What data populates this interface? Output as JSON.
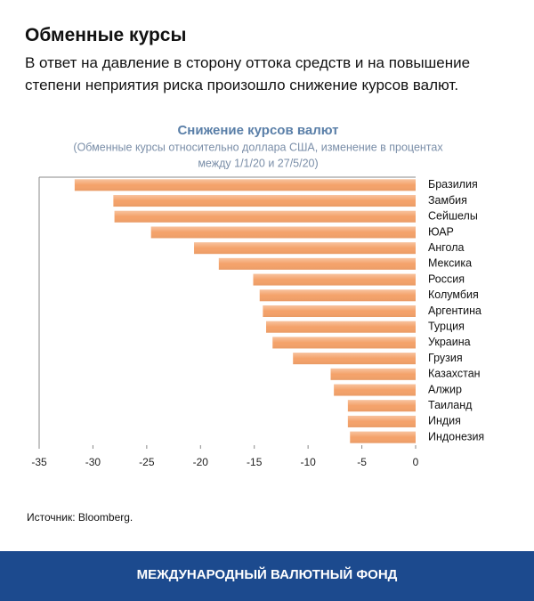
{
  "header": {
    "title": "Обменные курсы",
    "subtitle": "В ответ на давление в сторону оттока средств и на повышение степени неприятия риска произошло снижение курсов валют."
  },
  "chart_data": {
    "type": "bar",
    "orientation": "horizontal",
    "title": "Снижение курсов валют",
    "subtitle": [
      "(Обменные курсы относительно доллара США, изменение в процентах",
      "между 1/1/20 и 27/5/20)"
    ],
    "categories": [
      "Бразилия",
      "Замбия",
      "Сейшелы",
      "ЮАР",
      "Ангола",
      "Мексика",
      "Россия",
      "Колумбия",
      "Аргентина",
      "Турция",
      "Украина",
      "Грузия",
      "Казахстан",
      "Алжир",
      "Таиланд",
      "Индия",
      "Индонезия"
    ],
    "values": [
      -31.7,
      -28.1,
      -28.0,
      -24.6,
      -20.6,
      -18.3,
      -15.1,
      -14.5,
      -14.2,
      -13.9,
      -13.3,
      -11.4,
      -7.9,
      -7.6,
      -6.3,
      -6.3,
      -6.1
    ],
    "color": "#f4a26a",
    "xlim": [
      -35,
      0
    ],
    "xticks": [
      -35,
      -30,
      -25,
      -20,
      -15,
      -10,
      -5,
      0
    ]
  },
  "source": "Источник: Bloomberg.",
  "footer": "МЕЖДУНАРОДНЫЙ ВАЛЮТНЫЙ ФОНД"
}
